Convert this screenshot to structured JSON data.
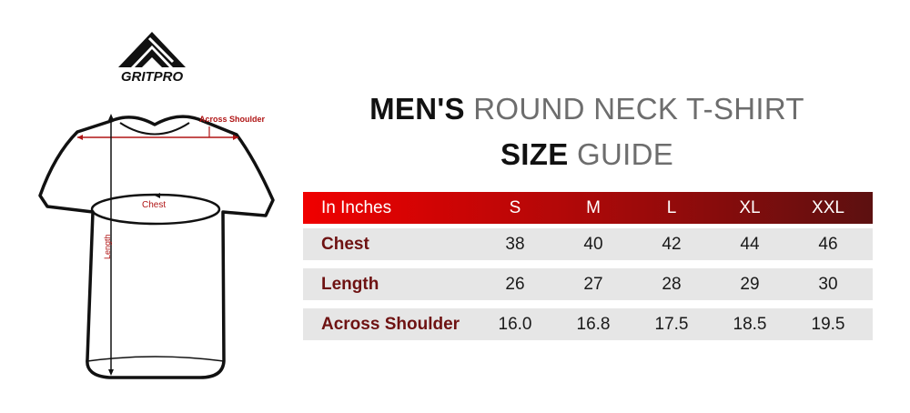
{
  "brand": {
    "logo_text": "GRITPRO"
  },
  "title": {
    "line1_bold": "MEN'S",
    "line1_rest": "ROUND NECK T-SHIRT",
    "line2_bold": "SIZE",
    "line2_rest": "GUIDE"
  },
  "diagram": {
    "across_shoulder": "Across Shoulder",
    "chest": "Chest",
    "length": "Length"
  },
  "table": {
    "unit_label": "In Inches",
    "sizes": [
      "S",
      "M",
      "L",
      "XL",
      "XXL"
    ],
    "rows": [
      {
        "label": "Chest",
        "values": [
          "38",
          "40",
          "42",
          "44",
          "46"
        ]
      },
      {
        "label": "Length",
        "values": [
          "26",
          "27",
          "28",
          "29",
          "30"
        ]
      },
      {
        "label": "Across Shoulder",
        "values": [
          "16.0",
          "16.8",
          "17.5",
          "18.5",
          "19.5"
        ]
      }
    ]
  },
  "colors": {
    "header_start": "#f00000",
    "header_end": "#5c1010",
    "row_bg": "#e6e6e6",
    "row_label": "#6e1212",
    "measure": "#b01515"
  }
}
